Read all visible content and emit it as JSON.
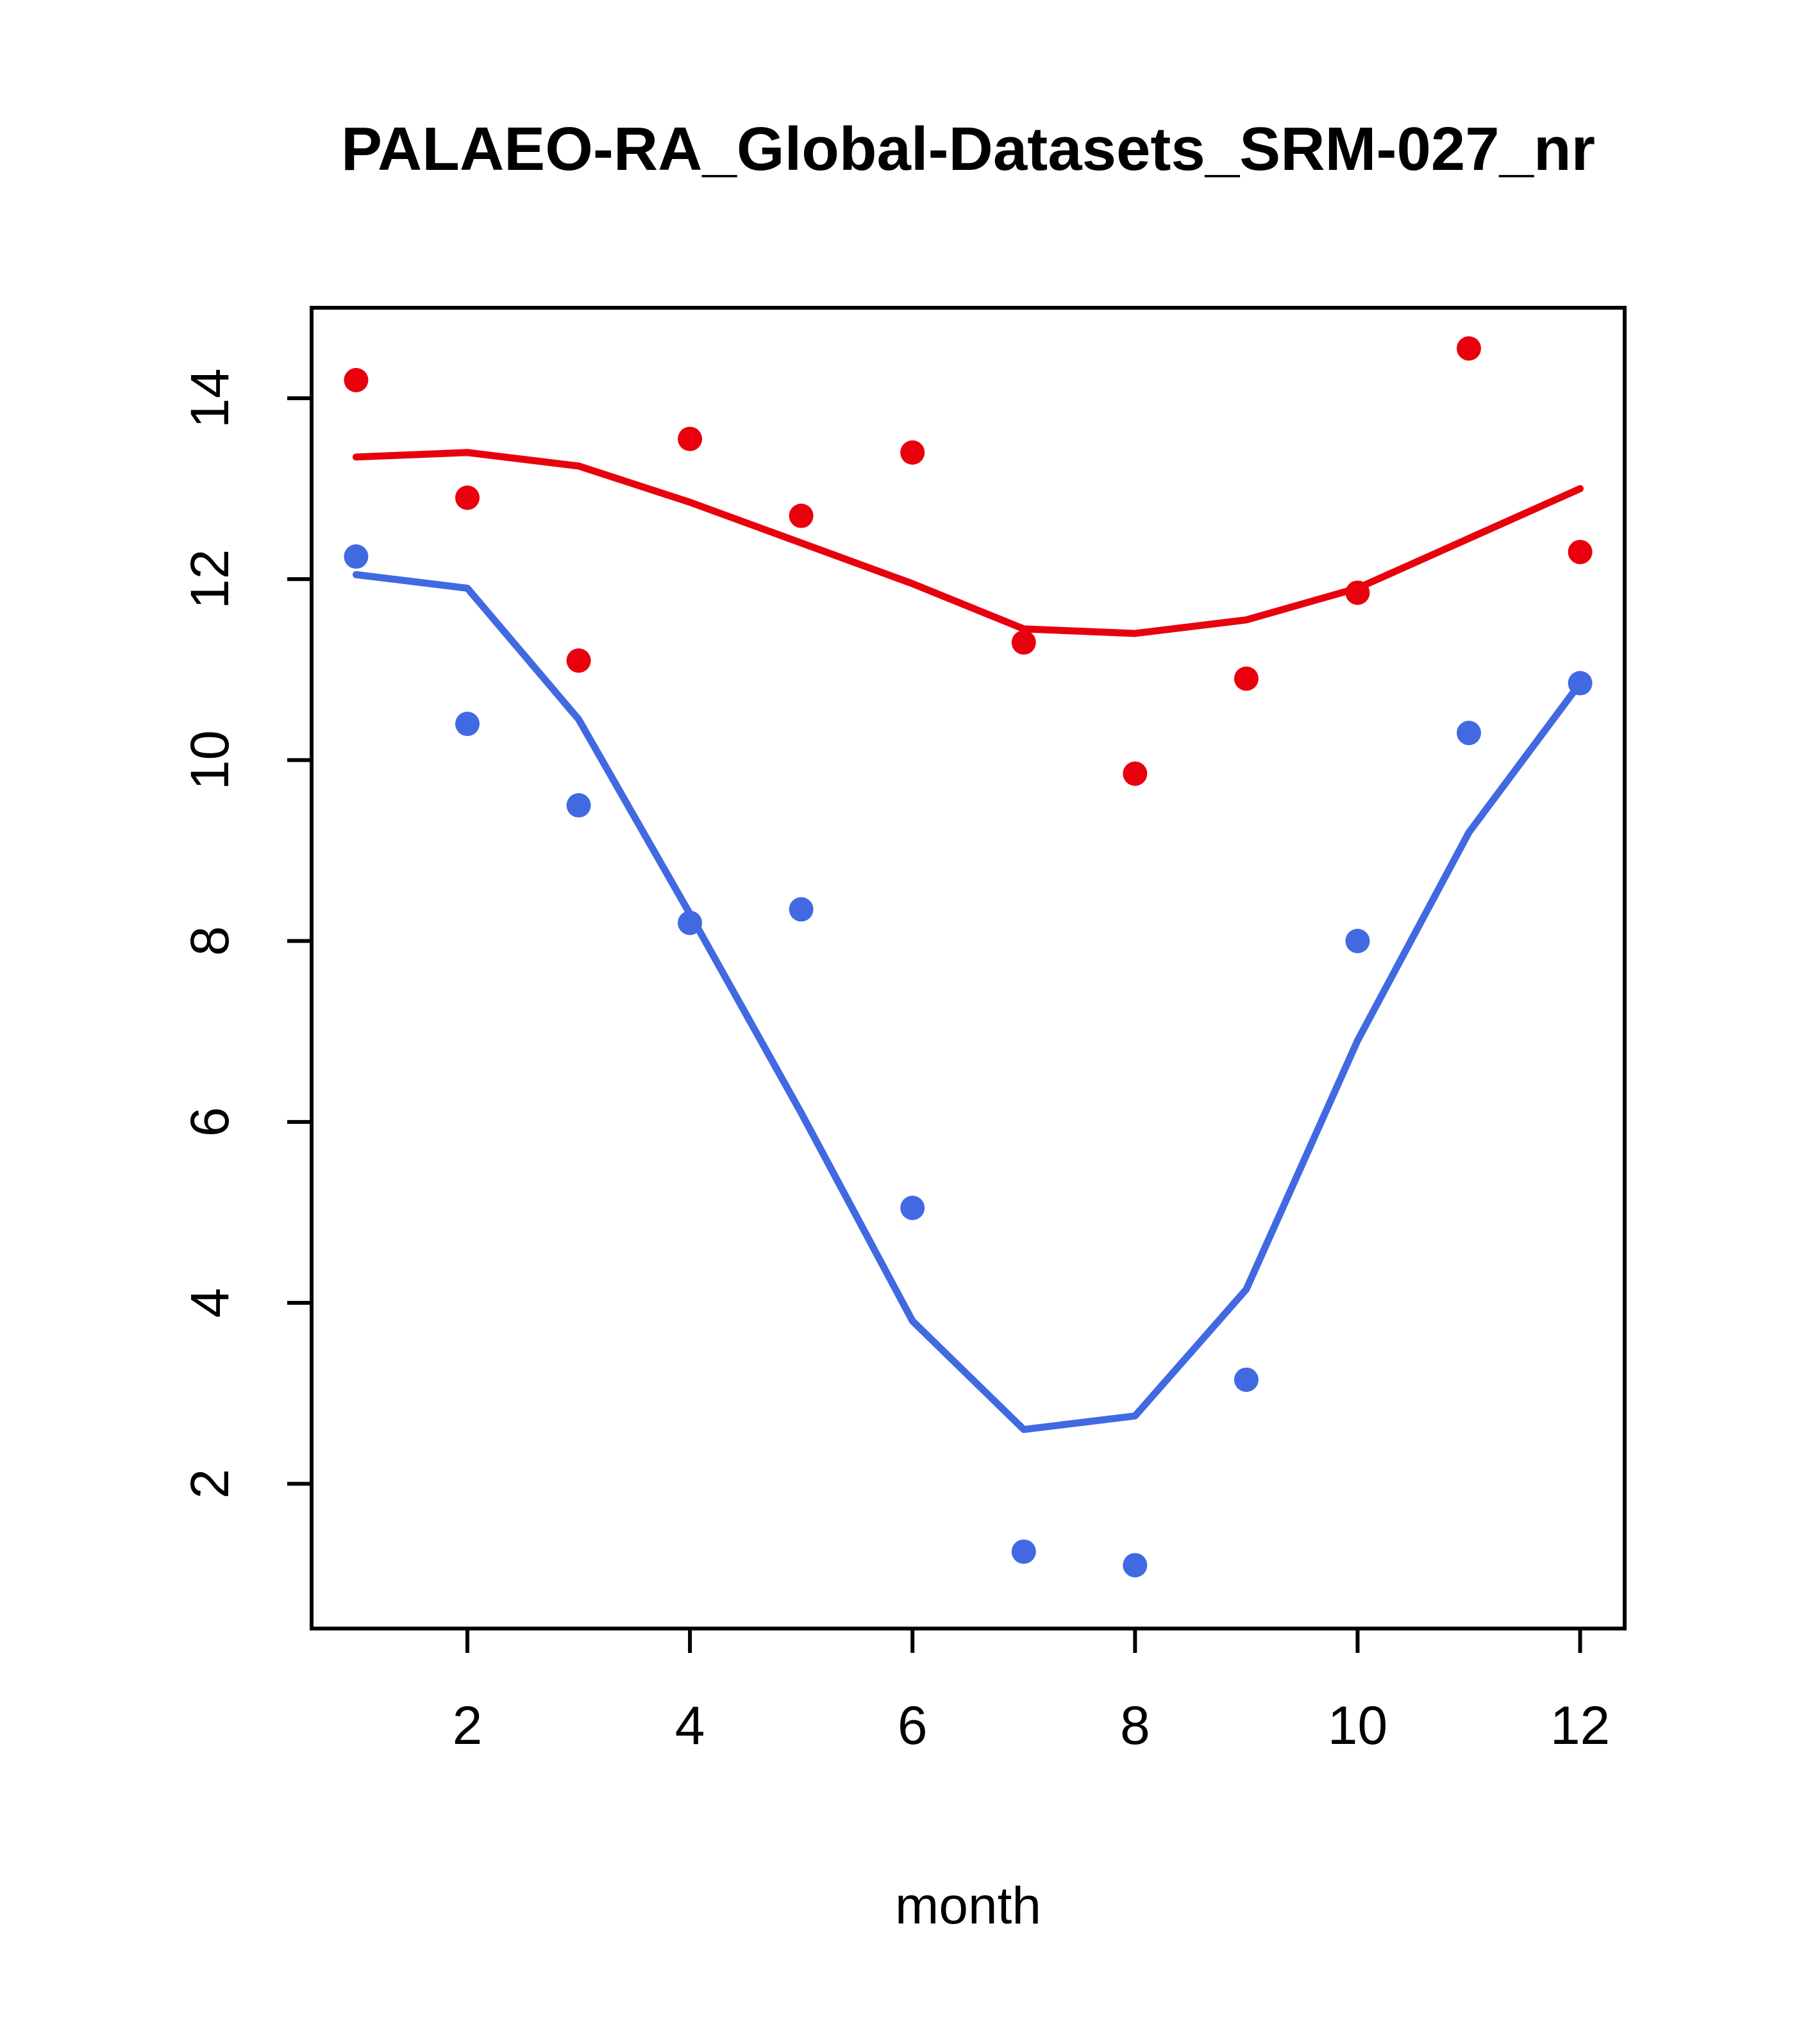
{
  "chart_data": {
    "type": "scatter",
    "title": "PALAEO-RA_Global-Datasets_SRM-027_nr",
    "xlabel": "month",
    "ylabel": "",
    "x": [
      1,
      2,
      3,
      4,
      5,
      6,
      7,
      8,
      9,
      10,
      11,
      12
    ],
    "xlim": [
      0.6,
      12.4
    ],
    "ylim": [
      0.4,
      15.0
    ],
    "x_ticks": [
      2,
      4,
      6,
      8,
      10,
      12
    ],
    "y_ticks": [
      2,
      4,
      6,
      8,
      10,
      12,
      14
    ],
    "grid": "off",
    "legend": "none",
    "series": [
      {
        "name": "red-observations",
        "type": "points",
        "color": "#e8000d",
        "values": [
          14.2,
          12.9,
          11.1,
          13.55,
          12.7,
          13.4,
          11.3,
          9.85,
          10.9,
          11.85,
          14.55,
          12.3
        ]
      },
      {
        "name": "red-smooth-line",
        "type": "line",
        "color": "#e8000d",
        "values": [
          13.35,
          13.4,
          13.25,
          12.85,
          12.4,
          11.95,
          11.45,
          11.4,
          11.55,
          11.9,
          12.45,
          13.0
        ]
      },
      {
        "name": "blue-observations",
        "type": "points",
        "color": "#4169e1",
        "values": [
          12.25,
          10.4,
          9.5,
          8.2,
          8.35,
          5.05,
          1.25,
          1.1,
          3.15,
          8.0,
          10.3,
          10.85
        ]
      },
      {
        "name": "blue-smooth-line",
        "type": "line",
        "color": "#4169e1",
        "values": [
          12.05,
          11.9,
          10.45,
          8.3,
          6.1,
          3.8,
          2.6,
          2.75,
          4.15,
          6.9,
          9.2,
          10.85
        ]
      }
    ]
  }
}
